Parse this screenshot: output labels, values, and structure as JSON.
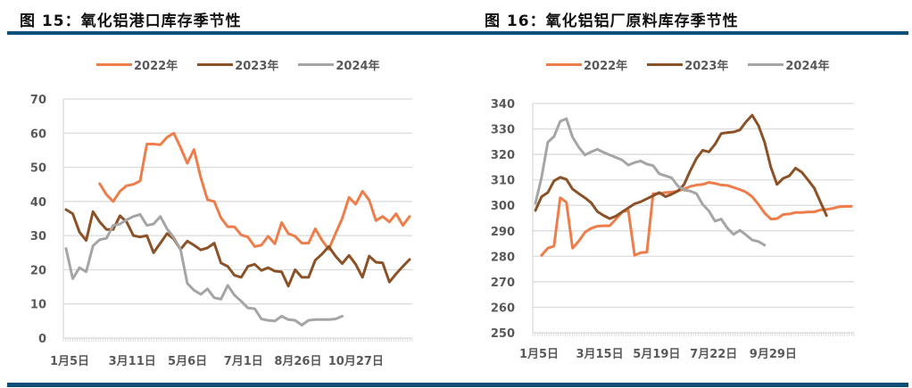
{
  "colors": {
    "y2022": "#ed7d4a",
    "y2023": "#8b5228",
    "y2024": "#a5a5a5",
    "rule": "#0d4f79",
    "grid": "#d9d9d9",
    "axis_text": "#595959"
  },
  "left": {
    "title": "图 15：氧化铝港口库存季节性",
    "legend": [
      {
        "label": "2022年",
        "color": "#ed7d4a"
      },
      {
        "label": "2023年",
        "color": "#8b5228"
      },
      {
        "label": "2024年",
        "color": "#a5a5a5"
      }
    ]
  },
  "right": {
    "title": "图 16：氧化铝铝厂原料库存季节性",
    "legend": [
      {
        "label": "2022年",
        "color": "#ed7d4a"
      },
      {
        "label": "2023年",
        "color": "#8b5228"
      },
      {
        "label": "2024年",
        "color": "#a5a5a5"
      }
    ]
  },
  "chart_data": [
    {
      "type": "line",
      "title": "图 15：氧化铝港口库存季节性",
      "xlabel": "",
      "ylabel": "",
      "ylim": [
        0,
        70
      ],
      "yticks": [
        0,
        10,
        20,
        30,
        40,
        50,
        60,
        70
      ],
      "xtick_labels": [
        "1月5日",
        "3月11日",
        "5月6日",
        "7月1日",
        "8月26日",
        "10月27日"
      ],
      "xtick_positions": [
        0,
        9.3,
        17.5,
        25.8,
        33.9,
        42.5
      ],
      "n_points": 52,
      "grid": true,
      "legend_position": "top",
      "series": [
        {
          "name": "2022年",
          "color": "#ed7d4a",
          "start_index": 5,
          "values": [
            45.2,
            42.0,
            40.0,
            43.0,
            44.6,
            45.0,
            46.0,
            56.8,
            56.8,
            56.6,
            58.8,
            60.0,
            55.8,
            51.2,
            55.2,
            47.0,
            40.5,
            40.0,
            35.2,
            32.6,
            32.6,
            30.2,
            29.6,
            26.8,
            27.2,
            29.8,
            27.6,
            33.8,
            30.6,
            29.8,
            27.8,
            27.8,
            32.0,
            28.6,
            26.0,
            30.6,
            35.0,
            41.2,
            39.2,
            43.0,
            40.4,
            34.4,
            35.6,
            34.0,
            36.4,
            33.0,
            35.6
          ]
        },
        {
          "name": "2023年",
          "color": "#8b5228",
          "start_index": 0,
          "values": [
            37.6,
            36.4,
            31.0,
            28.6,
            37.0,
            34.0,
            31.8,
            31.8,
            35.8,
            34.0,
            30.0,
            29.6,
            30.0,
            25.0,
            27.8,
            30.6,
            29.0,
            26.0,
            28.4,
            27.2,
            25.8,
            26.4,
            27.8,
            22.0,
            21.0,
            18.4,
            17.8,
            21.0,
            21.6,
            19.8,
            20.6,
            19.6,
            19.4,
            15.2,
            20.0,
            17.8,
            17.8,
            22.8,
            24.6,
            26.8,
            24.0,
            21.8,
            24.2,
            21.6,
            17.8,
            24.0,
            22.2,
            22.0,
            16.4,
            18.8,
            21.0,
            23.0
          ]
        },
        {
          "name": "2024年",
          "color": "#a5a5a5",
          "start_index": 0,
          "values": [
            26.2,
            17.4,
            20.6,
            19.4,
            27.0,
            28.8,
            29.2,
            33.0,
            33.4,
            34.6,
            35.6,
            36.2,
            33.0,
            33.4,
            35.6,
            32.0,
            29.4,
            26.0,
            16.0,
            14.0,
            12.8,
            14.4,
            11.8,
            11.4,
            15.4,
            12.6,
            10.8,
            8.8,
            8.6,
            5.6,
            5.2,
            5.0,
            6.4,
            5.4,
            5.2,
            3.8,
            5.2,
            5.4,
            5.4,
            5.4,
            5.6,
            6.4
          ]
        }
      ]
    },
    {
      "type": "line",
      "title": "图 16：氧化铝铝厂原料库存季节性",
      "xlabel": "",
      "ylabel": "",
      "ylim": [
        250,
        340
      ],
      "yticks": [
        250,
        260,
        270,
        280,
        290,
        300,
        310,
        320,
        330,
        340
      ],
      "xtick_labels": [
        "1月5日",
        "3月15日",
        "5月19日",
        "7月22日",
        "9月29日"
      ],
      "xtick_positions": [
        0,
        9.8,
        19.0,
        28.2,
        37.8
      ],
      "n_points": 52,
      "grid": true,
      "legend_position": "top",
      "series": [
        {
          "name": "2022年",
          "color": "#ed7d4a",
          "start_index": 1,
          "values": [
            280.4,
            283.2,
            284.0,
            303.0,
            301.2,
            283.2,
            286.0,
            289.4,
            291.0,
            291.8,
            292.0,
            292.0,
            294.6,
            297.4,
            298.0,
            280.4,
            281.4,
            281.6,
            304.6,
            304.6,
            305.0,
            305.2,
            305.6,
            306.4,
            307.4,
            308.0,
            308.2,
            309.0,
            308.6,
            308.0,
            307.8,
            307.0,
            306.2,
            305.2,
            303.4,
            300.4,
            297.0,
            294.6,
            294.8,
            296.4,
            296.6,
            297.2,
            297.2,
            297.4,
            297.4,
            298.2,
            298.4,
            298.8,
            299.4,
            299.6,
            299.6
          ]
        },
        {
          "name": "2023年",
          "color": "#8b5228",
          "start_index": 0,
          "values": [
            298.0,
            303.4,
            305.0,
            309.6,
            311.0,
            310.2,
            306.4,
            304.6,
            303.0,
            301.0,
            297.6,
            296.0,
            294.8,
            295.8,
            297.4,
            299.0,
            300.6,
            301.4,
            302.6,
            303.8,
            305.0,
            303.4,
            304.4,
            305.6,
            308.2,
            313.6,
            318.4,
            321.6,
            321.0,
            324.0,
            328.2,
            328.6,
            328.8,
            329.6,
            332.8,
            335.4,
            331.4,
            324.8,
            315.0,
            308.2,
            310.6,
            311.6,
            314.6,
            313.0,
            310.0,
            306.8,
            301.4,
            296.0
          ]
        },
        {
          "name": "2024年",
          "color": "#a5a5a5",
          "start_index": 0,
          "values": [
            300.8,
            311.0,
            324.8,
            327.0,
            333.0,
            334.0,
            326.8,
            322.8,
            319.8,
            321.0,
            322.0,
            320.8,
            319.8,
            318.8,
            317.8,
            315.8,
            316.8,
            317.4,
            316.2,
            315.6,
            312.4,
            311.6,
            310.8,
            307.6,
            306.0,
            305.6,
            304.6,
            300.4,
            297.8,
            293.8,
            294.6,
            291.0,
            288.6,
            290.2,
            288.4,
            286.4,
            285.8,
            284.4
          ]
        }
      ]
    }
  ]
}
